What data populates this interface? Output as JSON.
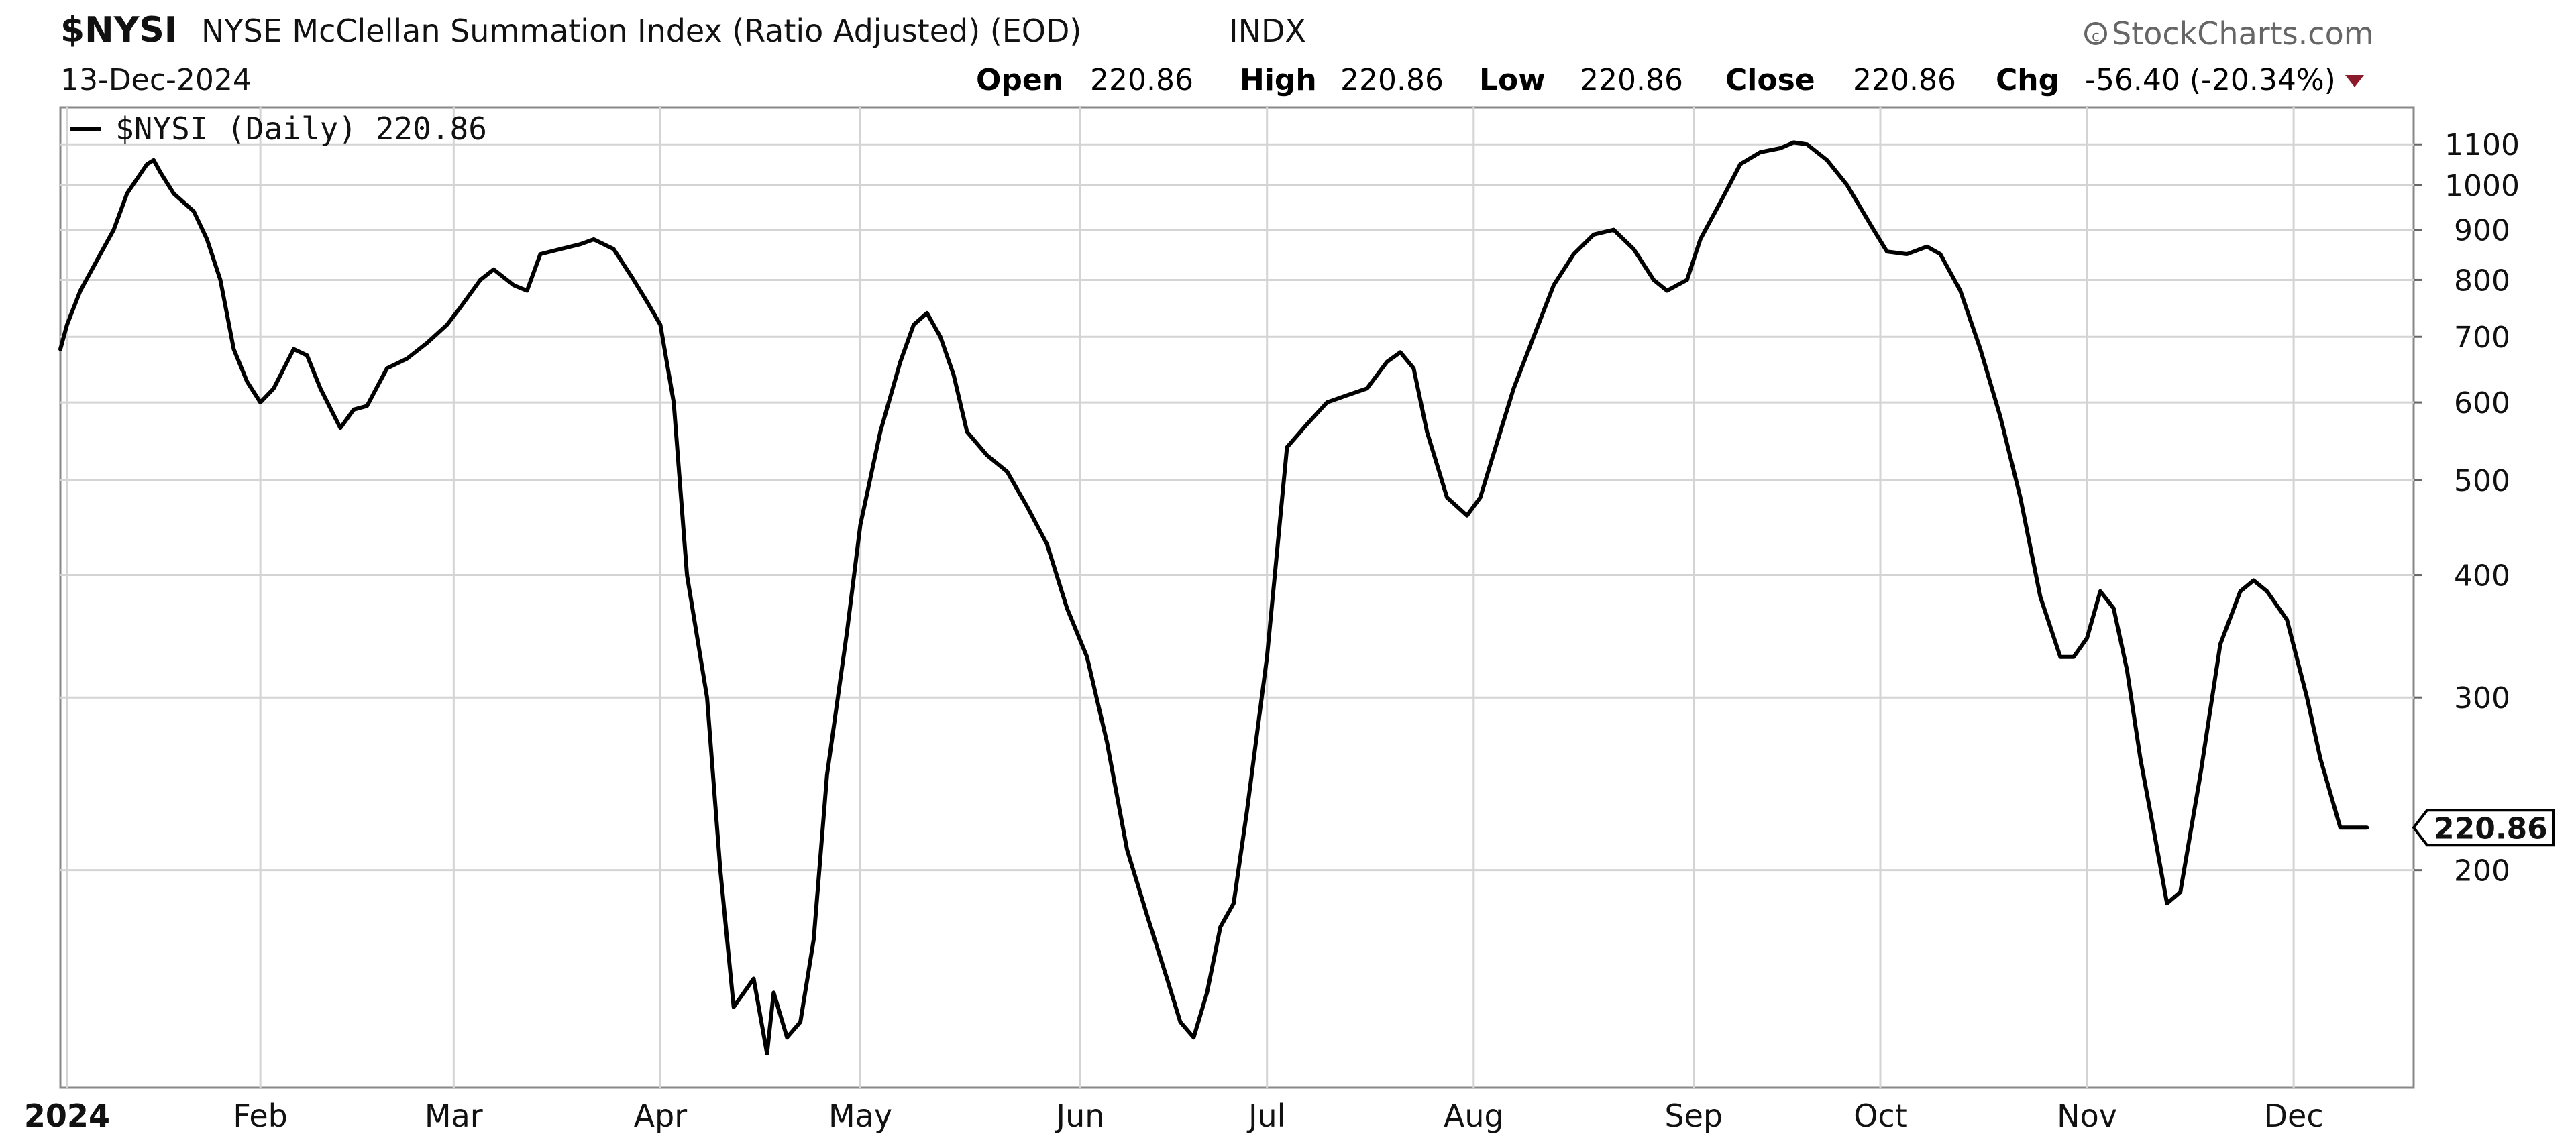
{
  "header": {
    "symbol": "$NYSI",
    "name": "NYSE McClellan Summation Index (Ratio Adjusted) (EOD)",
    "exchange": "INDX",
    "brand": "StockCharts.com",
    "date": "13-Dec-2024",
    "quote": [
      {
        "label": "Open",
        "value": "220.86"
      },
      {
        "label": "High",
        "value": "220.86"
      },
      {
        "label": "Low",
        "value": "220.86"
      },
      {
        "label": "Close",
        "value": "220.86"
      },
      {
        "label": "Chg",
        "value": "-56.40 (-20.34%)"
      }
    ],
    "change_direction": "down",
    "down_color": "#8b1a2b"
  },
  "legend": {
    "label": "$NYSI (Daily) 220.86"
  },
  "price_tag": "220.86",
  "chart_data": {
    "type": "line",
    "scale": "log",
    "ylim": [
      120,
      1200
    ],
    "xlim": [
      "2024-01-02",
      "2024-12-20"
    ],
    "grid": true,
    "legend_position": "top-left",
    "line_color": "#000000",
    "x_ticks": [
      {
        "date": "2024-01-03",
        "label": "2024"
      },
      {
        "date": "2024-02-01",
        "label": "Feb"
      },
      {
        "date": "2024-03-01",
        "label": "Mar"
      },
      {
        "date": "2024-04-01",
        "label": "Apr"
      },
      {
        "date": "2024-05-01",
        "label": "May"
      },
      {
        "date": "2024-06-03",
        "label": "Jun"
      },
      {
        "date": "2024-07-01",
        "label": "Jul"
      },
      {
        "date": "2024-08-01",
        "label": "Aug"
      },
      {
        "date": "2024-09-03",
        "label": "Sep"
      },
      {
        "date": "2024-10-01",
        "label": "Oct"
      },
      {
        "date": "2024-11-01",
        "label": "Nov"
      },
      {
        "date": "2024-12-02",
        "label": "Dec"
      }
    ],
    "y_ticks": [
      200,
      300,
      400,
      500,
      600,
      700,
      800,
      900,
      1000,
      1100
    ],
    "series": [
      {
        "values": [
          [
            "2024-01-02",
            680
          ],
          [
            "2024-01-03",
            720
          ],
          [
            "2024-01-05",
            780
          ],
          [
            "2024-01-08",
            850
          ],
          [
            "2024-01-10",
            900
          ],
          [
            "2024-01-12",
            980
          ],
          [
            "2024-01-15",
            1050
          ],
          [
            "2024-01-16",
            1060
          ],
          [
            "2024-01-17",
            1030
          ],
          [
            "2024-01-19",
            980
          ],
          [
            "2024-01-22",
            940
          ],
          [
            "2024-01-24",
            880
          ],
          [
            "2024-01-26",
            800
          ],
          [
            "2024-01-28",
            680
          ],
          [
            "2024-01-30",
            630
          ],
          [
            "2024-02-01",
            600
          ],
          [
            "2024-02-03",
            620
          ],
          [
            "2024-02-06",
            680
          ],
          [
            "2024-02-08",
            670
          ],
          [
            "2024-02-10",
            620
          ],
          [
            "2024-02-13",
            565
          ],
          [
            "2024-02-15",
            590
          ],
          [
            "2024-02-17",
            595
          ],
          [
            "2024-02-20",
            650
          ],
          [
            "2024-02-23",
            665
          ],
          [
            "2024-02-26",
            690
          ],
          [
            "2024-02-29",
            720
          ],
          [
            "2024-03-02",
            750
          ],
          [
            "2024-03-05",
            800
          ],
          [
            "2024-03-07",
            820
          ],
          [
            "2024-03-10",
            790
          ],
          [
            "2024-03-12",
            780
          ],
          [
            "2024-03-14",
            850
          ],
          [
            "2024-03-17",
            860
          ],
          [
            "2024-03-20",
            870
          ],
          [
            "2024-03-22",
            880
          ],
          [
            "2024-03-25",
            860
          ],
          [
            "2024-03-28",
            800
          ],
          [
            "2024-03-30",
            760
          ],
          [
            "2024-04-01",
            720
          ],
          [
            "2024-04-03",
            600
          ],
          [
            "2024-04-05",
            400
          ],
          [
            "2024-04-08",
            300
          ],
          [
            "2024-04-10",
            200
          ],
          [
            "2024-04-12",
            145
          ],
          [
            "2024-04-15",
            155
          ],
          [
            "2024-04-17",
            130
          ],
          [
            "2024-04-18",
            150
          ],
          [
            "2024-04-20",
            135
          ],
          [
            "2024-04-22",
            140
          ],
          [
            "2024-04-24",
            170
          ],
          [
            "2024-04-26",
            250
          ],
          [
            "2024-04-29",
            350
          ],
          [
            "2024-05-01",
            450
          ],
          [
            "2024-05-04",
            560
          ],
          [
            "2024-05-07",
            660
          ],
          [
            "2024-05-09",
            720
          ],
          [
            "2024-05-11",
            740
          ],
          [
            "2024-05-13",
            700
          ],
          [
            "2024-05-15",
            640
          ],
          [
            "2024-05-17",
            560
          ],
          [
            "2024-05-20",
            530
          ],
          [
            "2024-05-23",
            510
          ],
          [
            "2024-05-26",
            470
          ],
          [
            "2024-05-29",
            430
          ],
          [
            "2024-06-01",
            370
          ],
          [
            "2024-06-04",
            330
          ],
          [
            "2024-06-07",
            270
          ],
          [
            "2024-06-10",
            210
          ],
          [
            "2024-06-13",
            180
          ],
          [
            "2024-06-16",
            155
          ],
          [
            "2024-06-18",
            140
          ],
          [
            "2024-06-20",
            135
          ],
          [
            "2024-06-22",
            150
          ],
          [
            "2024-06-24",
            175
          ],
          [
            "2024-06-26",
            185
          ],
          [
            "2024-06-28",
            230
          ],
          [
            "2024-07-01",
            330
          ],
          [
            "2024-07-04",
            540
          ],
          [
            "2024-07-07",
            570
          ],
          [
            "2024-07-10",
            600
          ],
          [
            "2024-07-13",
            610
          ],
          [
            "2024-07-16",
            620
          ],
          [
            "2024-07-19",
            660
          ],
          [
            "2024-07-21",
            675
          ],
          [
            "2024-07-23",
            650
          ],
          [
            "2024-07-25",
            560
          ],
          [
            "2024-07-28",
            480
          ],
          [
            "2024-07-31",
            460
          ],
          [
            "2024-08-02",
            480
          ],
          [
            "2024-08-05",
            560
          ],
          [
            "2024-08-07",
            620
          ],
          [
            "2024-08-10",
            700
          ],
          [
            "2024-08-13",
            790
          ],
          [
            "2024-08-16",
            850
          ],
          [
            "2024-08-19",
            890
          ],
          [
            "2024-08-22",
            900
          ],
          [
            "2024-08-25",
            860
          ],
          [
            "2024-08-28",
            800
          ],
          [
            "2024-08-30",
            780
          ],
          [
            "2024-09-02",
            800
          ],
          [
            "2024-09-04",
            880
          ],
          [
            "2024-09-07",
            960
          ],
          [
            "2024-09-10",
            1050
          ],
          [
            "2024-09-13",
            1080
          ],
          [
            "2024-09-16",
            1090
          ],
          [
            "2024-09-18",
            1105
          ],
          [
            "2024-09-20",
            1100
          ],
          [
            "2024-09-23",
            1060
          ],
          [
            "2024-09-26",
            1000
          ],
          [
            "2024-09-30",
            900
          ],
          [
            "2024-10-02",
            855
          ],
          [
            "2024-10-05",
            850
          ],
          [
            "2024-10-08",
            865
          ],
          [
            "2024-10-10",
            850
          ],
          [
            "2024-10-13",
            780
          ],
          [
            "2024-10-16",
            680
          ],
          [
            "2024-10-19",
            580
          ],
          [
            "2024-10-22",
            480
          ],
          [
            "2024-10-25",
            380
          ],
          [
            "2024-10-28",
            330
          ],
          [
            "2024-10-30",
            330
          ],
          [
            "2024-11-01",
            345
          ],
          [
            "2024-11-03",
            385
          ],
          [
            "2024-11-05",
            370
          ],
          [
            "2024-11-07",
            320
          ],
          [
            "2024-11-09",
            260
          ],
          [
            "2024-11-11",
            220
          ],
          [
            "2024-11-13",
            185
          ],
          [
            "2024-11-15",
            190
          ],
          [
            "2024-11-18",
            250
          ],
          [
            "2024-11-21",
            340
          ],
          [
            "2024-11-24",
            385
          ],
          [
            "2024-11-26",
            395
          ],
          [
            "2024-11-28",
            385
          ],
          [
            "2024-12-01",
            360
          ],
          [
            "2024-12-04",
            300
          ],
          [
            "2024-12-06",
            260
          ],
          [
            "2024-12-09",
            221
          ],
          [
            "2024-12-10",
            221
          ],
          [
            "2024-12-13",
            221
          ]
        ]
      }
    ]
  }
}
